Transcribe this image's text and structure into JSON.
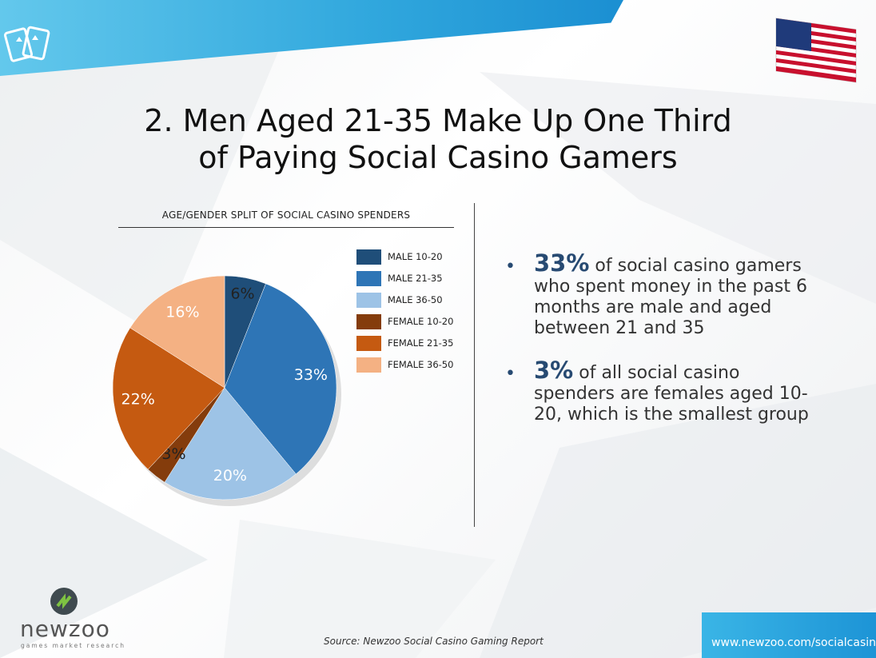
{
  "title": {
    "line1": "2. Men Aged 21-35 Make Up One Third",
    "line2": "of Paying Social Casino Gamers"
  },
  "chart_data": {
    "type": "pie",
    "title": "AGE/GENDER SPLIT OF SOCIAL CASINO SPENDERS",
    "slices": [
      {
        "name": "MALE 10-20",
        "value": 6,
        "label": "6%",
        "color": "#1f4e79"
      },
      {
        "name": "MALE 21-35",
        "value": 33,
        "label": "33%",
        "color": "#2e75b6"
      },
      {
        "name": "MALE 36-50",
        "value": 20,
        "label": "20%",
        "color": "#9dc3e6"
      },
      {
        "name": "FEMALE 10-20",
        "value": 3,
        "label": "3%",
        "color": "#843c0c"
      },
      {
        "name": "FEMALE 21-35",
        "value": 22,
        "label": "22%",
        "color": "#c55a11"
      },
      {
        "name": "FEMALE 36-50",
        "value": 16,
        "label": "16%",
        "color": "#f4b183"
      }
    ],
    "legend_position": "right"
  },
  "bullets": [
    {
      "highlight": "33%",
      "text": " of social casino gamers who spent money in the past 6 months are male and aged between 21 and 35"
    },
    {
      "highlight": "3%",
      "text": " of all social casino spenders are females aged 10-20, which is the smallest group"
    }
  ],
  "footer": {
    "source": "Source: Newzoo Social Casino Gaming Report",
    "url": "www.newzoo.com/socialcasino",
    "brand": "newzoo",
    "tagline": "games market research"
  },
  "colors": {
    "accent_blue": "#2ba3dc",
    "highlight_text": "#274a72"
  },
  "icons": {
    "top_left": "playing-cards-icon",
    "top_right": "us-flag-icon",
    "brand": "newzoo-logo-icon"
  }
}
